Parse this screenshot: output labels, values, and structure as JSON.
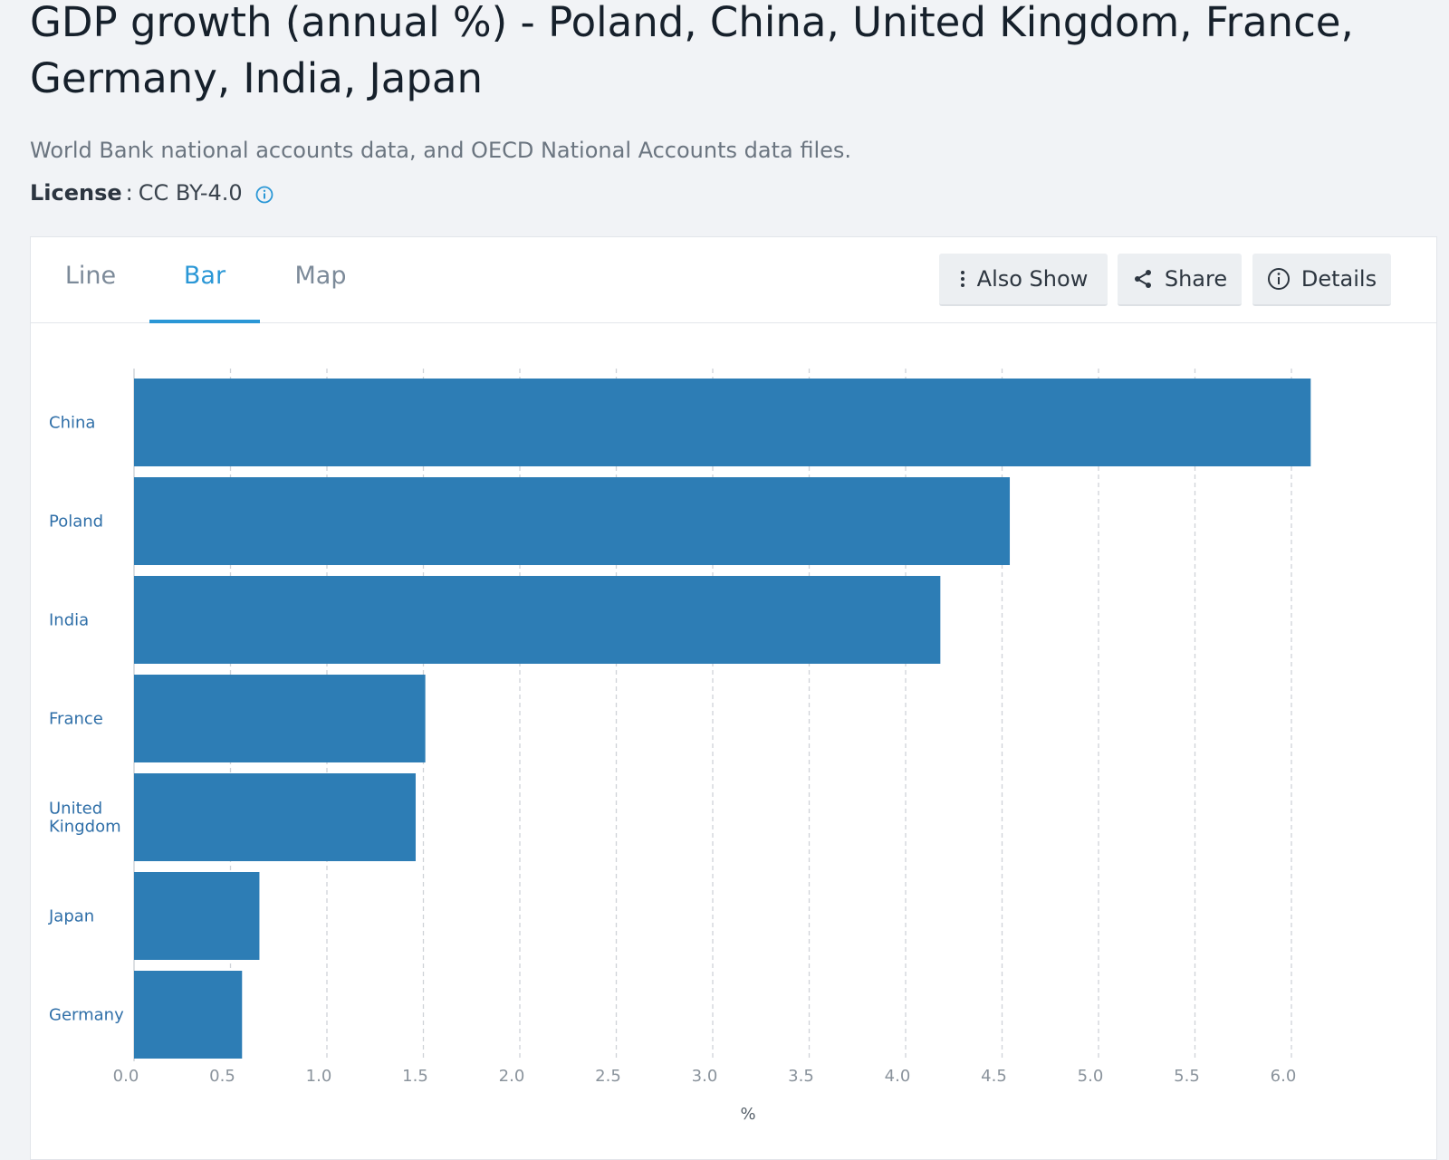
{
  "header": {
    "title": "GDP growth (annual %) - Poland, China, United Kingdom, France, Germany, India, Japan",
    "source": "World Bank national accounts data, and OECD National Accounts data files.",
    "license_label": "License",
    "license_sep": ":",
    "license_value": "CC BY-4.0",
    "license_icon": "info-circle-icon"
  },
  "tabs": [
    {
      "label": "Line",
      "active": false
    },
    {
      "label": "Bar",
      "active": true
    },
    {
      "label": "Map",
      "active": false
    }
  ],
  "toolbar": {
    "also_show": {
      "label": "Also Show",
      "icon": "vertical-dots-icon"
    },
    "share": {
      "label": "Share",
      "icon": "share-icon"
    },
    "details": {
      "label": "Details",
      "icon": "info-circle-icon"
    }
  },
  "colors": {
    "accent": "#2a97d6",
    "bar": "#2d7db5",
    "label": "#2f6fa8"
  },
  "chart_data": {
    "type": "bar",
    "orientation": "horizontal",
    "categories": [
      "China",
      "Poland",
      "India",
      "France",
      "United Kingdom",
      "Japan",
      "Germany"
    ],
    "values": [
      6.1,
      4.54,
      4.18,
      1.51,
      1.46,
      0.65,
      0.56
    ],
    "xlabel": "%",
    "ylabel": "",
    "xlim": [
      0,
      6.0
    ],
    "x_ticks": [
      "0.0",
      "0.5",
      "1.0",
      "1.5",
      "2.0",
      "2.5",
      "3.0",
      "3.5",
      "4.0",
      "4.5",
      "5.0",
      "5.5",
      "6.0"
    ],
    "grid": true,
    "grid_style": "dashed vertical"
  }
}
